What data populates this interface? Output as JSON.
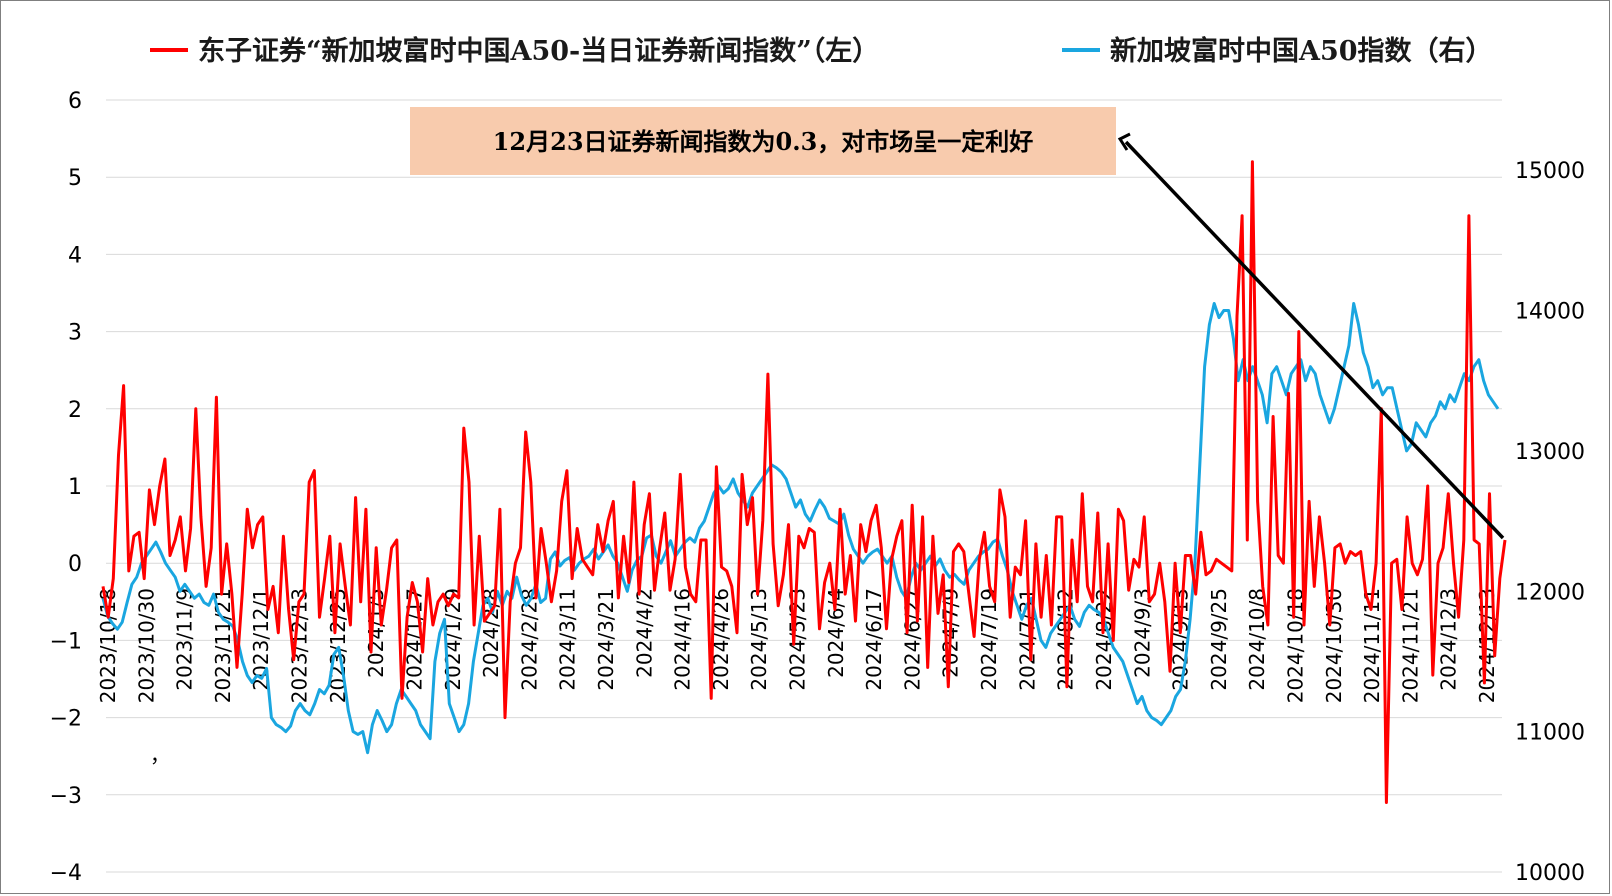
{
  "chart_data": {
    "type": "line",
    "legend": {
      "placement": "top",
      "items": [
        {
          "label": "东子证券“新加坡富时中国A50-当日证券新闻指数”（左）",
          "color": "#ff0000"
        },
        {
          "label": "新加坡富时中国A50指数（右）",
          "color": "#1aa6e0"
        }
      ]
    },
    "annotation": {
      "text": "12月23日证券新闻指数为0.3，对市场呈一定利好",
      "bg": "#f8cbad"
    },
    "stray_mark": "，",
    "left_axis": {
      "min": -4,
      "max": 6,
      "ticks": [
        "6",
        "5",
        "4",
        "3",
        "2",
        "1",
        "0",
        "−1",
        "−2",
        "−3",
        "−4"
      ],
      "tick_values": [
        6,
        5,
        4,
        3,
        2,
        1,
        0,
        -1,
        -2,
        -3,
        -4
      ]
    },
    "right_axis": {
      "min": 10000,
      "max": 15500,
      "ticks": [
        "15000",
        "14000",
        "13000",
        "12000",
        "11000",
        "10000"
      ],
      "tick_values": [
        15000,
        14000,
        13000,
        12000,
        11000,
        10000
      ]
    },
    "x_labels": [
      "2023/10/18",
      "2023/10/30",
      "2023/11/9",
      "2023/11/21",
      "2023/12/1",
      "2023/12/13",
      "2023/12/25",
      "2024/1/5",
      "2024/1/17",
      "2024/1/29",
      "2024/2/8",
      "2024/2/28",
      "2024/3/11",
      "2024/3/21",
      "2024/4/2",
      "2024/4/16",
      "2024/4/26",
      "2024/5/13",
      "2024/5/23",
      "2024/6/4",
      "2024/6/17",
      "2024/6/27",
      "2024/7/9",
      "2024/7/19",
      "2024/7/31",
      "2024/8/12",
      "2024/8/22",
      "2024/9/3",
      "2024/9/13",
      "2024/9/25",
      "2024/10/8",
      "2024/10/18",
      "2024/10/30",
      "2024/11/11",
      "2024/11/21",
      "2024/12/3",
      "2024/12/13"
    ],
    "grid": "horizontal",
    "series": [
      {
        "name": "东子证券“新加坡富时中国A50-当日证券新闻指数”（左）",
        "axis": "left",
        "color": "#ff0000",
        "values": [
          -0.3,
          -0.7,
          -0.2,
          1.4,
          2.3,
          -0.1,
          0.35,
          0.4,
          -0.2,
          0.95,
          0.5,
          1.0,
          1.35,
          0.1,
          0.3,
          0.6,
          -0.1,
          0.45,
          2.0,
          0.6,
          -0.3,
          0.2,
          2.15,
          -0.4,
          0.25,
          -0.4,
          -1.35,
          -0.4,
          0.7,
          0.2,
          0.5,
          0.6,
          -0.6,
          -0.3,
          -0.9,
          0.35,
          -0.6,
          -1.25,
          -0.5,
          -0.4,
          1.05,
          1.2,
          -0.7,
          -0.2,
          0.35,
          -0.9,
          0.25,
          -0.3,
          -0.8,
          0.85,
          -0.5,
          0.7,
          -1.15,
          0.2,
          -0.8,
          -0.35,
          0.2,
          0.3,
          -1.75,
          -0.7,
          -0.25,
          -0.5,
          -1.15,
          -0.2,
          -0.8,
          -0.5,
          -0.4,
          -0.55,
          -0.4,
          -0.45,
          1.75,
          1.05,
          -0.8,
          0.35,
          -0.75,
          -0.65,
          -0.55,
          0.7,
          -2.0,
          -0.5,
          0.0,
          0.2,
          1.7,
          1.05,
          -0.45,
          0.45,
          0.0,
          -0.5,
          -0.1,
          0.8,
          1.2,
          -0.2,
          0.45,
          0.05,
          -0.05,
          -0.15,
          0.5,
          0.15,
          0.55,
          0.8,
          -0.45,
          0.35,
          -0.25,
          1.05,
          -0.4,
          0.5,
          0.9,
          -0.35,
          0.2,
          0.65,
          -0.35,
          0.05,
          1.15,
          -0.05,
          -0.4,
          -0.5,
          0.3,
          0.3,
          -1.75,
          1.25,
          -0.05,
          -0.1,
          -0.3,
          -0.9,
          1.15,
          0.5,
          0.85,
          -0.4,
          0.55,
          2.45,
          0.25,
          -0.55,
          -0.15,
          0.5,
          -1.05,
          0.35,
          0.2,
          0.45,
          0.4,
          -0.85,
          -0.25,
          0.0,
          -0.6,
          0.7,
          -0.4,
          0.1,
          -0.75,
          0.5,
          0.15,
          0.55,
          0.75,
          0.2,
          -0.85,
          0.05,
          0.35,
          0.55,
          -0.9,
          0.75,
          -0.75,
          0.6,
          -1.35,
          0.35,
          -0.65,
          -0.15,
          -1.6,
          0.15,
          0.25,
          0.15,
          -0.4,
          -0.95,
          0.05,
          0.4,
          -0.3,
          -0.5,
          0.95,
          0.6,
          -0.7,
          -0.05,
          -0.15,
          0.55,
          -1.25,
          0.25,
          -0.7,
          0.1,
          -0.8,
          0.6,
          0.6,
          -1.6,
          0.3,
          -0.5,
          0.9,
          -0.3,
          -0.5,
          0.65,
          -0.9,
          0.25,
          -1.0,
          0.7,
          0.55,
          -0.35,
          0.05,
          -0.05,
          0.6,
          -0.5,
          -0.4,
          0.0,
          -0.5,
          -1.4,
          0.0,
          -0.9,
          0.1,
          0.1,
          -0.4,
          0.4,
          -0.15,
          -0.1,
          0.05,
          0.0,
          -0.05,
          -0.1,
          3.2,
          4.5,
          0.3,
          5.2,
          0.8,
          -0.3,
          -0.8,
          1.9,
          0.1,
          0.0,
          2.2,
          -0.7,
          3.0,
          -0.8,
          0.8,
          -0.3,
          0.6,
          0.0,
          -0.8,
          0.2,
          0.25,
          0.0,
          0.15,
          0.1,
          0.15,
          -0.4,
          -0.6,
          0.0,
          2.0,
          -3.1,
          0.0,
          0.05,
          -0.6,
          0.6,
          0.0,
          -0.15,
          0.05,
          1.0,
          -1.45,
          0.0,
          0.2,
          0.9,
          0.0,
          -0.7,
          0.3,
          4.5,
          0.3,
          0.25,
          -1.55,
          0.9,
          -1.2,
          -0.2,
          0.3
        ]
      },
      {
        "name": "新加坡富时中国A50指数（右）",
        "axis": "right",
        "color": "#1aa6e0",
        "values": [
          11950,
          11820,
          11770,
          11730,
          11780,
          11920,
          12050,
          12100,
          12200,
          12250,
          12300,
          12350,
          12280,
          12200,
          12150,
          12100,
          12000,
          12050,
          12000,
          11950,
          11980,
          11920,
          11900,
          11980,
          11850,
          11800,
          11780,
          11750,
          11650,
          11500,
          11400,
          11350,
          11400,
          11380,
          11450,
          11100,
          11050,
          11030,
          11000,
          11040,
          11150,
          11200,
          11150,
          11120,
          11200,
          11300,
          11270,
          11330,
          11550,
          11600,
          11400,
          11150,
          11000,
          10980,
          11000,
          10850,
          11050,
          11150,
          11080,
          11000,
          11050,
          11200,
          11300,
          11250,
          11200,
          11150,
          11050,
          11000,
          10950,
          11500,
          11700,
          11800,
          11200,
          11100,
          11000,
          11050,
          11200,
          11500,
          11700,
          11900,
          11950,
          11850,
          12000,
          11900,
          12000,
          11950,
          12100,
          11970,
          11900,
          11950,
          12050,
          11920,
          11950,
          12230,
          12280,
          12180,
          12220,
          12240,
          12150,
          12200,
          12230,
          12250,
          12300,
          12230,
          12280,
          12330,
          12250,
          12200,
          12100,
          12000,
          12150,
          12220,
          12250,
          12380,
          12400,
          12250,
          12200,
          12280,
          12360,
          12250,
          12300,
          12350,
          12380,
          12350,
          12450,
          12500,
          12600,
          12700,
          12750,
          12700,
          12730,
          12800,
          12700,
          12650,
          12600,
          12700,
          12750,
          12800,
          12850,
          12900,
          12880,
          12850,
          12800,
          12700,
          12600,
          12650,
          12550,
          12500,
          12580,
          12650,
          12600,
          12520,
          12500,
          12480,
          12550,
          12400,
          12300,
          12250,
          12200,
          12250,
          12280,
          12300,
          12250,
          12200,
          12250,
          12100,
          12000,
          11950,
          12100,
          12200,
          12150,
          12200,
          12250,
          12180,
          12230,
          12150,
          12100,
          12120,
          12080,
          12050,
          12150,
          12200,
          12250,
          12280,
          12300,
          12350,
          12370,
          12250,
          12150,
          12000,
          11900,
          11800,
          11900,
          11950,
          11800,
          11650,
          11600,
          11700,
          11750,
          11800,
          11850,
          11900,
          11800,
          11750,
          11850,
          11900,
          11870,
          11850,
          11800,
          11700,
          11600,
          11550,
          11500,
          11400,
          11300,
          11200,
          11250,
          11150,
          11100,
          11080,
          11050,
          11100,
          11150,
          11250,
          11300,
          11500,
          11800,
          12200,
          12900,
          13600,
          13900,
          14050,
          13950,
          14000,
          14000,
          13800,
          13500,
          13650,
          13500,
          13600,
          13500,
          13400,
          13200,
          13550,
          13600,
          13500,
          13400,
          13550,
          13600,
          13650,
          13500,
          13600,
          13550,
          13400,
          13300,
          13200,
          13300,
          13450,
          13600,
          13750,
          14050,
          13900,
          13700,
          13600,
          13450,
          13500,
          13400,
          13450,
          13450,
          13300,
          13150,
          13000,
          13050,
          13200,
          13150,
          13100,
          13200,
          13250,
          13350,
          13300,
          13400,
          13350,
          13450,
          13550,
          13500,
          13600,
          13650,
          13500,
          13400,
          13350,
          13300
        ]
      }
    ]
  }
}
